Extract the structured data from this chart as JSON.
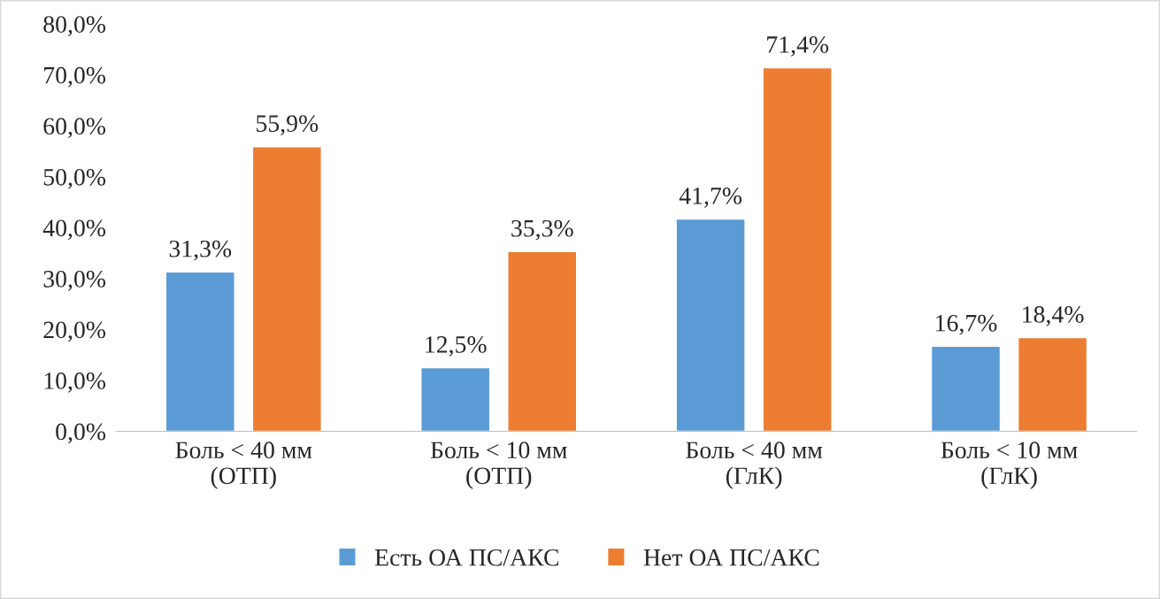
{
  "chart_data": {
    "type": "bar",
    "categories": [
      "Боль < 40 мм\n(ОТП)",
      "Боль < 10 мм\n(ОТП)",
      "Боль < 40 мм\n(ГлК)",
      "Боль < 10 мм\n(ГлК)"
    ],
    "series": [
      {
        "name": "Есть ОА ПС/АКС",
        "color": "#5b9bd5",
        "values": [
          31.3,
          12.5,
          41.7,
          16.7
        ],
        "value_labels": [
          "31,3%",
          "12,5%",
          "41,7%",
          "16,7%"
        ]
      },
      {
        "name": "Нет ОА ПС/АКС",
        "color": "#ed7d31",
        "values": [
          55.9,
          35.3,
          71.4,
          18.4
        ],
        "value_labels": [
          "55,9%",
          "35,3%",
          "71,4%",
          "18,4%"
        ]
      }
    ],
    "ylim": [
      0,
      80
    ],
    "yticks": [
      {
        "value": 0,
        "label": "0,0%"
      },
      {
        "value": 10,
        "label": "10,0%"
      },
      {
        "value": 20,
        "label": "20,0%"
      },
      {
        "value": 30,
        "label": "30,0%"
      },
      {
        "value": 40,
        "label": "40,0%"
      },
      {
        "value": 50,
        "label": "50,0%"
      },
      {
        "value": 60,
        "label": "60,0%"
      },
      {
        "value": 70,
        "label": "70,0%"
      },
      {
        "value": 80,
        "label": "80,0%"
      }
    ],
    "grid": false,
    "legend": "bottom"
  }
}
